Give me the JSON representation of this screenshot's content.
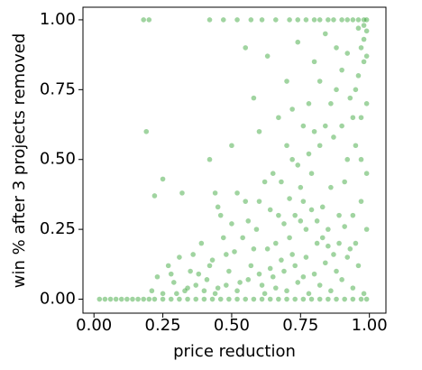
{
  "chart_data": {
    "type": "scatter",
    "xlabel": "price reduction",
    "ylabel": "win % after 3 projects removed",
    "color": "#2ca02c",
    "xlim": [
      -0.04,
      1.06
    ],
    "ylim": [
      -0.05,
      1.045
    ],
    "xticks": [
      {
        "value": 0,
        "label": "0.00"
      },
      {
        "value": 0.25,
        "label": "0.25"
      },
      {
        "value": 0.5,
        "label": "0.50"
      },
      {
        "value": 0.75,
        "label": "0.75"
      },
      {
        "value": 1,
        "label": "1.00"
      }
    ],
    "yticks": [
      {
        "value": 0,
        "label": "0.00"
      },
      {
        "value": 0.25,
        "label": "0.25"
      },
      {
        "value": 0.5,
        "label": "0.50"
      },
      {
        "value": 0.75,
        "label": "0.75"
      },
      {
        "value": 1,
        "label": "1.00"
      }
    ],
    "x": [
      0.02,
      0.04,
      0.06,
      0.08,
      0.1,
      0.12,
      0.14,
      0.16,
      0.18,
      0.2,
      0.22,
      0.25,
      0.28,
      0.31,
      0.34,
      0.37,
      0.4,
      0.43,
      0.46,
      0.49,
      0.52,
      0.55,
      0.58,
      0.61,
      0.64,
      0.67,
      0.7,
      0.73,
      0.76,
      0.79,
      0.82,
      0.85,
      0.88,
      0.91,
      0.94,
      0.97,
      0.99,
      0.18,
      0.2,
      0.42,
      0.47,
      0.52,
      0.57,
      0.61,
      0.66,
      0.71,
      0.74,
      0.77,
      0.8,
      0.82,
      0.85,
      0.87,
      0.9,
      0.92,
      0.94,
      0.96,
      0.98,
      0.99,
      0.19,
      0.25,
      0.22,
      0.32,
      0.42,
      0.45,
      0.5,
      0.55,
      0.58,
      0.6,
      0.63,
      0.65,
      0.67,
      0.7,
      0.72,
      0.74,
      0.76,
      0.78,
      0.8,
      0.82,
      0.84,
      0.86,
      0.88,
      0.9,
      0.92,
      0.94,
      0.96,
      0.97,
      0.98,
      0.99,
      0.98,
      0.97,
      0.99,
      0.95,
      0.93,
      0.91,
      0.89,
      0.87,
      0.85,
      0.83,
      0.81,
      0.79,
      0.77,
      0.75,
      0.73,
      0.71,
      0.69,
      0.67,
      0.65,
      0.63,
      0.61,
      0.59,
      0.57,
      0.55,
      0.53,
      0.51,
      0.49,
      0.47,
      0.45,
      0.43,
      0.41,
      0.39,
      0.37,
      0.35,
      0.33,
      0.31,
      0.29,
      0.27,
      0.25,
      0.23,
      0.21,
      0.62,
      0.66,
      0.7,
      0.74,
      0.78,
      0.82,
      0.86,
      0.9,
      0.94,
      0.98,
      0.96,
      0.92,
      0.88,
      0.84,
      0.8,
      0.76,
      0.72,
      0.68,
      0.64,
      0.6,
      0.56,
      0.52,
      0.48,
      0.44,
      0.4,
      0.99,
      0.97,
      0.95,
      0.93,
      0.91,
      0.89,
      0.87,
      0.85,
      0.83,
      0.81,
      0.79,
      0.77,
      0.75,
      0.73,
      0.71,
      0.69,
      0.99,
      0.98,
      0.97,
      0.99,
      0.96,
      0.95,
      0.94,
      0.92,
      0.9,
      0.88,
      0.86,
      0.84,
      0.82,
      0.8,
      0.78,
      0.76,
      0.74,
      0.72,
      0.7,
      0.68,
      0.66,
      0.64,
      0.62,
      0.6,
      0.58,
      0.56,
      0.54,
      0.52,
      0.5,
      0.48,
      0.46,
      0.44,
      0.42,
      0.38,
      0.36,
      0.34,
      0.3,
      0.28
    ],
    "values": [
      0,
      0,
      0,
      0,
      0,
      0,
      0,
      0,
      0,
      0,
      0,
      0,
      0,
      0,
      0,
      0,
      0,
      0,
      0,
      0,
      0,
      0,
      0,
      0,
      0,
      0,
      0,
      0,
      0,
      0,
      0,
      0,
      0,
      0,
      0,
      0,
      0,
      1,
      1,
      1,
      1,
      1,
      1,
      1,
      1,
      1,
      1,
      1,
      1,
      1,
      1,
      1,
      1,
      1,
      1,
      1,
      1,
      1,
      0.6,
      0.43,
      0.37,
      0.38,
      0.5,
      0.33,
      0.55,
      0.9,
      0.72,
      0.6,
      0.87,
      0.45,
      0.65,
      0.78,
      0.5,
      0.92,
      0.35,
      0.7,
      0.85,
      0.55,
      0.95,
      0.4,
      0.75,
      0.62,
      0.88,
      0.3,
      0.8,
      0.5,
      0.93,
      0.7,
      0.85,
      0.65,
      0.45,
      0.55,
      0.72,
      0.42,
      0.3,
      0.58,
      0.25,
      0.33,
      0.2,
      0.45,
      0.15,
      0.28,
      0.12,
      0.22,
      0.1,
      0.3,
      0.08,
      0.18,
      0.05,
      0.25,
      0.12,
      0.35,
      0.06,
      0.17,
      0.1,
      0.22,
      0.04,
      0.14,
      0.07,
      0.2,
      0.05,
      0.1,
      0.03,
      0.15,
      0.06,
      0.12,
      0.02,
      0.08,
      0.03,
      0.02,
      0.04,
      0.03,
      0.06,
      0.02,
      0.05,
      0.03,
      0.07,
      0.04,
      0.02,
      0.12,
      0.15,
      0.1,
      0.13,
      0.09,
      0.08,
      0.16,
      0.14,
      0.11,
      0.09,
      0.07,
      0.03,
      0.05,
      0.02,
      0.03,
      0.25,
      0.35,
      0.2,
      0.18,
      0.26,
      0.2,
      0.16,
      0.19,
      0.22,
      0.28,
      0.32,
      0.25,
      0.4,
      0.3,
      0.36,
      0.27,
      0.96,
      0.98,
      0.9,
      0.87,
      0.97,
      0.75,
      0.65,
      0.5,
      0.82,
      0.9,
      0.7,
      0.62,
      0.78,
      0.6,
      0.52,
      0.62,
      0.48,
      0.68,
      0.55,
      0.42,
      0.2,
      0.32,
      0.42,
      0.35,
      0.18,
      0.28,
      0.22,
      0.38,
      0.27,
      0.16,
      0.3,
      0.38,
      0.12,
      0.09,
      0.16,
      0.04,
      0.02,
      0.09
    ]
  }
}
